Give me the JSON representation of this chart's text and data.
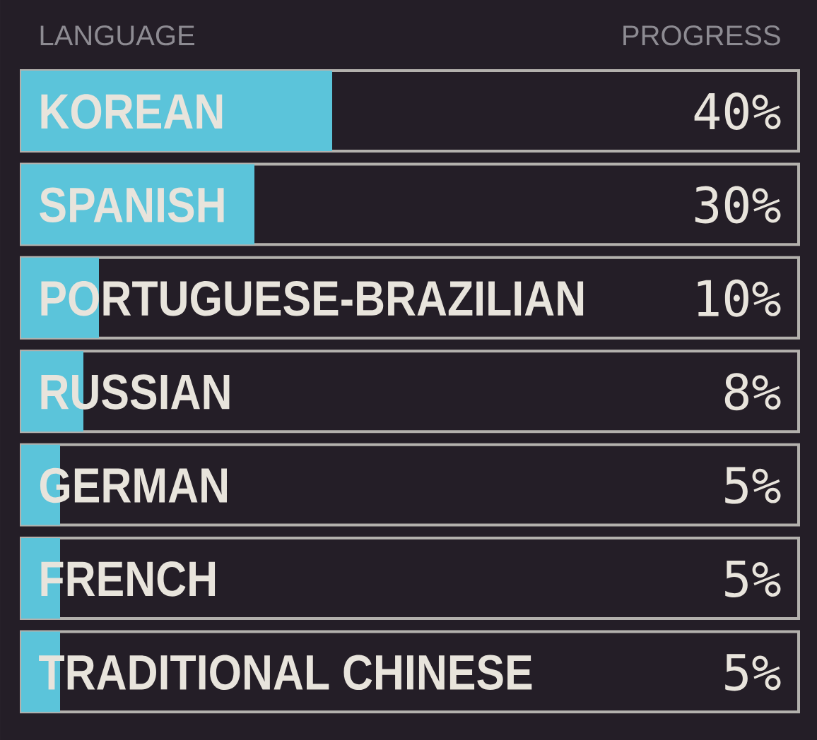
{
  "chart_data": {
    "type": "bar",
    "orientation": "horizontal",
    "xlabel": "PROGRESS",
    "ylabel": "LANGUAGE",
    "categories": [
      "KOREAN",
      "SPANISH",
      "PORTUGUESE-BRAZILIAN",
      "RUSSIAN",
      "GERMAN",
      "FRENCH",
      "TRADITIONAL CHINESE"
    ],
    "values": [
      40,
      30,
      10,
      8,
      5,
      5,
      5
    ],
    "value_labels": [
      "40%",
      "30%",
      "10%",
      "8%",
      "5%",
      "5%",
      "5%"
    ],
    "color": "#5bc4da",
    "xlim": [
      0,
      100
    ],
    "tick_labels": "y"
  }
}
